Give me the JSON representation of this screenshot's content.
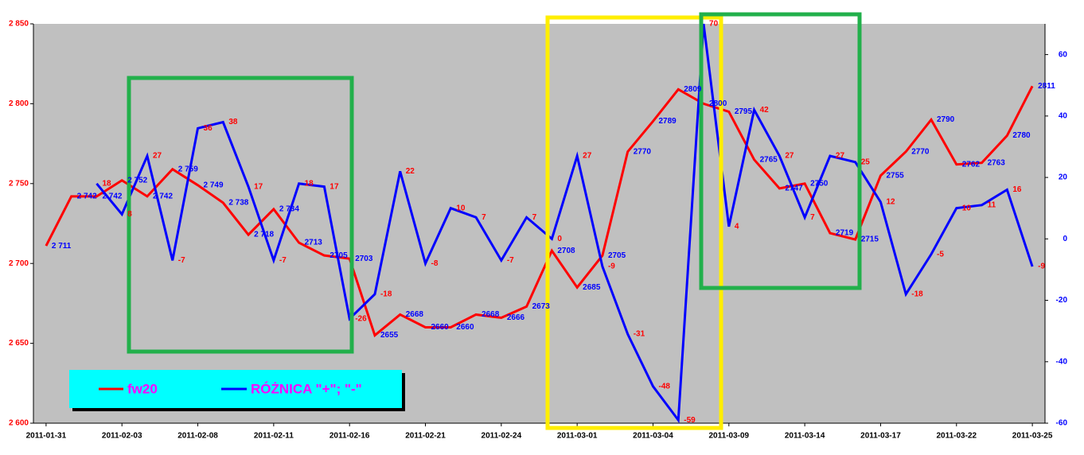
{
  "chart_data": {
    "type": "line",
    "categories": [
      "2011-01-31",
      null,
      null,
      "2011-02-03",
      null,
      null,
      "2011-02-08",
      null,
      null,
      "2011-02-11",
      null,
      null,
      "2011-02-16",
      null,
      null,
      "2011-02-21",
      null,
      null,
      "2011-02-24",
      null,
      null,
      "2011-03-01",
      null,
      null,
      "2011-03-04",
      null,
      null,
      "2011-03-09",
      null,
      null,
      "2011-03-14",
      null,
      null,
      "2011-03-17",
      null,
      null,
      "2011-03-22",
      null,
      null,
      "2011-03-25"
    ],
    "ylim": [
      2600,
      2850
    ],
    "yticks": [
      {
        "value": 2600,
        "label": "2 600"
      },
      {
        "value": 2650,
        "label": "2 650"
      },
      {
        "value": 2700,
        "label": "2 700"
      },
      {
        "value": 2750,
        "label": "2 750"
      },
      {
        "value": 2800,
        "label": "2 800"
      },
      {
        "value": 2850,
        "label": "2 850"
      }
    ],
    "y2lim": [
      -60,
      70
    ],
    "y2ticks": [
      -60,
      -40,
      -20,
      0,
      20,
      40,
      60
    ],
    "ytick_color": "#ff0000",
    "y2tick_color": "#0000ff",
    "background": "#c0c0c0",
    "series": [
      {
        "name": "fw20",
        "color": "#ff0000",
        "label_color": "#0000ff",
        "values": [
          2711,
          2742,
          2742,
          2752,
          2742,
          2759,
          2749,
          2738,
          2718,
          2734,
          2713,
          2705,
          2703,
          2655,
          2668,
          2660,
          2660,
          2668,
          2666,
          2673,
          2708,
          2685,
          2705,
          2770,
          2789,
          2809,
          2800,
          2795,
          2765,
          2747,
          2750,
          2719,
          2715,
          2755,
          2770,
          2790,
          2762,
          2763,
          2780,
          2811
        ],
        "value_labels": [
          "2 711",
          "2 742",
          "2 742",
          "2 752",
          "2 742",
          "2 759",
          "2 749",
          "2 738",
          "2 718",
          "2 734",
          "2713",
          "2705",
          "2703",
          "2655",
          "2668",
          "2660",
          "2660",
          "2668",
          "2666",
          "2673",
          "2708",
          "2685",
          "2705",
          "2770",
          "2789",
          "2809",
          "2800",
          "2795",
          "2765",
          "2747",
          "2750",
          "2719",
          "2715",
          "2755",
          "2770",
          "2790",
          "2762",
          "2763",
          "2780",
          "2811"
        ]
      },
      {
        "name": "RÓŻNICA \"+\"; \"-\"",
        "color": "#0000ff",
        "label_color": "#ff0000",
        "axis": "y2",
        "values": [
          null,
          null,
          18,
          8,
          27,
          -7,
          36,
          38,
          17,
          -7,
          18,
          17,
          -26,
          -18,
          22,
          -8,
          10,
          7,
          -7,
          7,
          0,
          27,
          -9,
          -31,
          -48,
          -59,
          70,
          4,
          42,
          27,
          7,
          27,
          25,
          12,
          -18,
          -5,
          10,
          11,
          16,
          -9
        ]
      }
    ]
  }
}
